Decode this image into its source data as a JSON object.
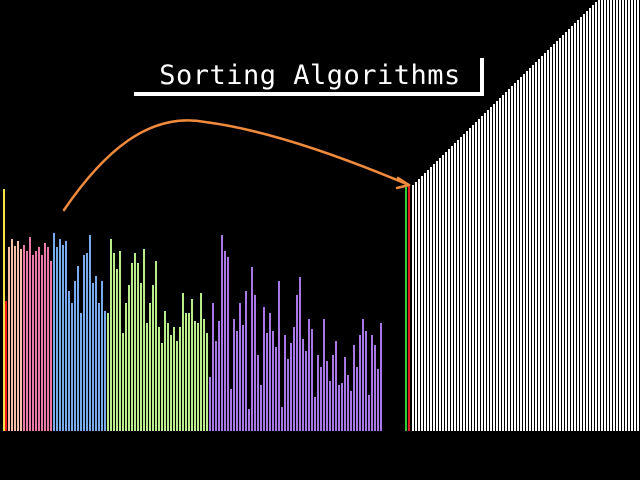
{
  "title": "Sorting Algorithms",
  "colors": {
    "background": "#000000",
    "sorted_bars": "#ffffff",
    "arrow": "#f08a3c",
    "pointer_green": "#33cc33",
    "pointer_red": "#dd2222",
    "marker_yellow": "#f4e34a",
    "marker_red": "#ff1a1a"
  },
  "arrow_icon": "curved-arrow-icon",
  "unsorted_groups": [
    {
      "color": "#f7bfa8",
      "values": [
        184,
        192,
        185,
        190,
        182
      ]
    },
    {
      "color": "#e879a8",
      "values": [
        186,
        180,
        194,
        176,
        180,
        184,
        176,
        188,
        184,
        170
      ]
    },
    {
      "color": "#78aaee",
      "values": [
        198,
        184,
        192,
        186,
        190,
        140,
        128,
        150,
        165,
        118,
        176,
        178,
        196,
        148,
        155,
        128,
        150,
        120
      ]
    },
    {
      "color": "#b9ec8a",
      "values": [
        118,
        192,
        178,
        162,
        180,
        98,
        128,
        146,
        168,
        178,
        168,
        148,
        182,
        108,
        128,
        146,
        170,
        104,
        88,
        120,
        108,
        96,
        104,
        90,
        104,
        138,
        118,
        118,
        132,
        110,
        108,
        138,
        112,
        98
      ]
    },
    {
      "color": "#a777e6",
      "values": [
        54,
        128,
        90,
        110,
        196,
        180,
        174,
        42,
        112,
        100,
        128,
        106,
        140,
        22,
        164,
        136,
        76,
        46,
        124,
        98,
        118,
        100,
        84,
        150,
        24,
        96,
        72,
        88,
        104,
        136,
        154,
        92,
        80,
        112,
        102,
        34,
        76,
        64,
        112,
        70,
        50,
        76,
        90,
        46,
        48,
        74,
        56,
        40,
        86,
        64,
        96,
        112,
        100,
        36,
        96,
        86,
        62,
        108
      ]
    }
  ],
  "sorted_values": [
    246,
    249,
    252,
    255,
    258,
    261,
    264,
    267,
    270,
    273,
    276,
    279,
    282,
    285,
    288,
    291,
    294,
    297,
    300,
    303,
    306,
    309,
    312,
    315,
    318,
    321,
    324,
    327,
    330,
    333,
    336,
    339,
    342,
    345,
    348,
    351,
    354,
    357,
    360,
    363,
    366,
    369,
    372,
    375,
    378,
    381,
    384,
    387,
    390,
    393,
    396,
    399,
    402,
    405,
    408,
    411,
    414,
    417,
    420,
    423,
    426,
    429,
    432,
    435,
    438,
    441,
    444,
    447,
    450,
    453,
    456,
    459,
    462,
    465,
    468,
    471,
    474,
    477
  ]
}
